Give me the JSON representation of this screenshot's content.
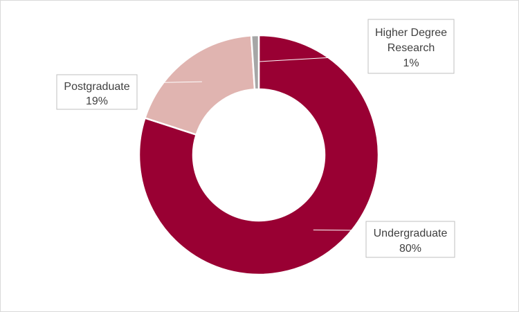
{
  "chart_data": {
    "type": "pie",
    "variant": "donut",
    "title": "",
    "series": [
      {
        "name": "",
        "slices": [
          {
            "label": "Undergraduate",
            "value": 80,
            "display": "80%",
            "color": "#990033"
          },
          {
            "label": "Postgraduate",
            "value": 19,
            "display": "19%",
            "color": "#e0b4b0"
          },
          {
            "label": "Higher Degree Research",
            "value": 1,
            "display": "1%",
            "color": "#a6a6a6"
          }
        ]
      }
    ],
    "start_angle": "12 o'clock",
    "direction": "clockwise",
    "legend": "none",
    "data_labels": "callouts with leader lines"
  }
}
